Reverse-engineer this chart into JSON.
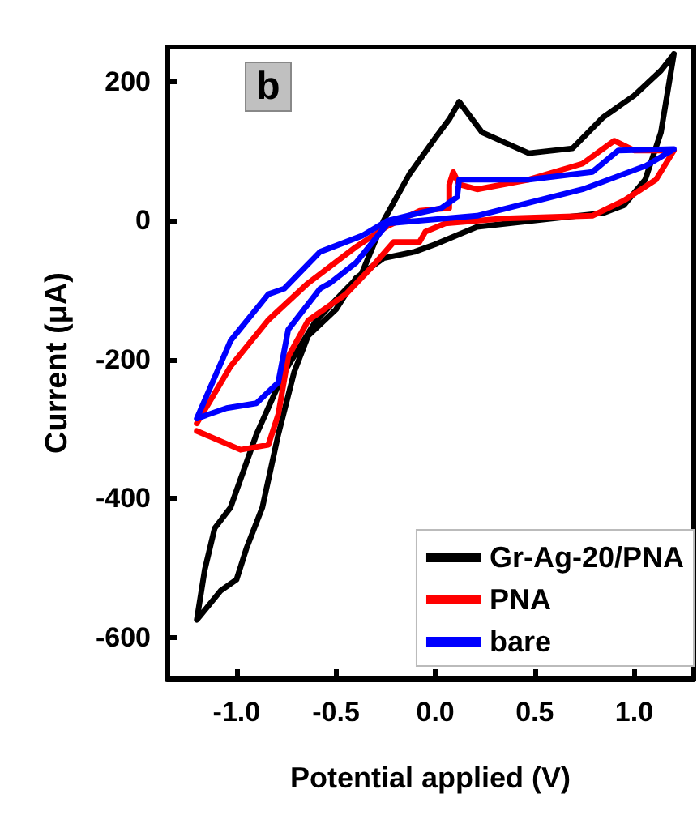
{
  "chart_data": {
    "type": "line",
    "xlabel": "Potential applied (V)",
    "ylabel": "Current (μA)",
    "annotations": [
      "b"
    ],
    "xlim": [
      -1.35,
      1.3
    ],
    "ylim": [
      -660,
      250
    ],
    "xticks": [
      {
        "value": -1,
        "label": "-1.0"
      },
      {
        "value": -0.5,
        "label": "-0.5"
      },
      {
        "value": 0,
        "label": "0.0"
      },
      {
        "value": 0.5,
        "label": "0.5"
      },
      {
        "value": 1,
        "label": "1.0"
      }
    ],
    "yticks": [
      -600,
      -400,
      -200,
      0,
      200
    ],
    "grid": false,
    "legend": "bottom right",
    "marker": "none",
    "line_style": "solid",
    "series": [
      {
        "name": "Gr-Ag-20/PNA",
        "color": "#000000",
        "x": [
          1.2,
          1.135,
          1.056,
          0.948,
          0.845,
          0.21,
          0.0,
          -0.105,
          -0.26,
          -0.4,
          -0.5,
          -0.64,
          -0.71,
          -0.79,
          -0.87,
          -0.95,
          -1.0,
          -1.08,
          -1.2,
          -1.16,
          -1.11,
          -1.03,
          -0.9,
          -0.76,
          -0.6,
          -0.45,
          -0.37,
          -0.26,
          -0.13,
          0.0,
          0.07,
          0.12,
          0.235,
          0.47,
          0.69,
          0.845,
          1.0,
          1.135,
          1.19
        ],
        "values": [
          240,
          127,
          59,
          22,
          11,
          -9,
          -34,
          -45,
          -54,
          -83,
          -128,
          -166,
          -218,
          -308,
          -413,
          -472,
          -517,
          -533,
          -575,
          -503,
          -443,
          -413,
          -308,
          -218,
          -144,
          -99,
          -76,
          0,
          67,
          119,
          146,
          171,
          127,
          97,
          104,
          149,
          180,
          216,
          236
        ]
      },
      {
        "name": "PNA",
        "color": "#ff0000",
        "x": [
          -1.2,
          -0.98,
          -0.84,
          -0.79,
          -0.74,
          -0.64,
          -0.45,
          -0.32,
          -0.21,
          -0.08,
          -0.05,
          0.05,
          0.34,
          0.79,
          0.95,
          1.11,
          1.2,
          1.0,
          0.9,
          0.74,
          0.47,
          0.21,
          0.12,
          0.09,
          0.07,
          0.07,
          -0.08,
          -0.24,
          -0.4,
          -0.64,
          -0.84,
          -1.03,
          -1.2
        ],
        "values": [
          -303,
          -330,
          -323,
          -279,
          -196,
          -144,
          -106,
          -67,
          -31,
          -31,
          -16,
          -4,
          3,
          7,
          29,
          59,
          101,
          101,
          115,
          82,
          59,
          45,
          52,
          70,
          52,
          18,
          14,
          -8,
          -38,
          -90,
          -143,
          -210,
          -292
        ]
      },
      {
        "name": "bare",
        "color": "#0000ff",
        "x": [
          1.2,
          0.92,
          0.79,
          0.47,
          0.12,
          0.11,
          0.03,
          -0.08,
          -0.24,
          -0.37,
          -0.58,
          -0.76,
          -0.84,
          -1.03,
          -1.2,
          -1.05,
          -0.9,
          -0.79,
          -0.74,
          -0.58,
          -0.53,
          -0.4,
          -0.24,
          0.21,
          0.74,
          1.06,
          1.19
        ],
        "values": [
          103,
          101,
          70,
          59,
          59,
          34,
          18,
          11,
          0,
          -22,
          -45,
          -98,
          -106,
          -173,
          -285,
          -270,
          -263,
          -233,
          -157,
          -98,
          -90,
          -61,
          -4,
          7,
          45,
          79,
          101
        ]
      }
    ]
  }
}
